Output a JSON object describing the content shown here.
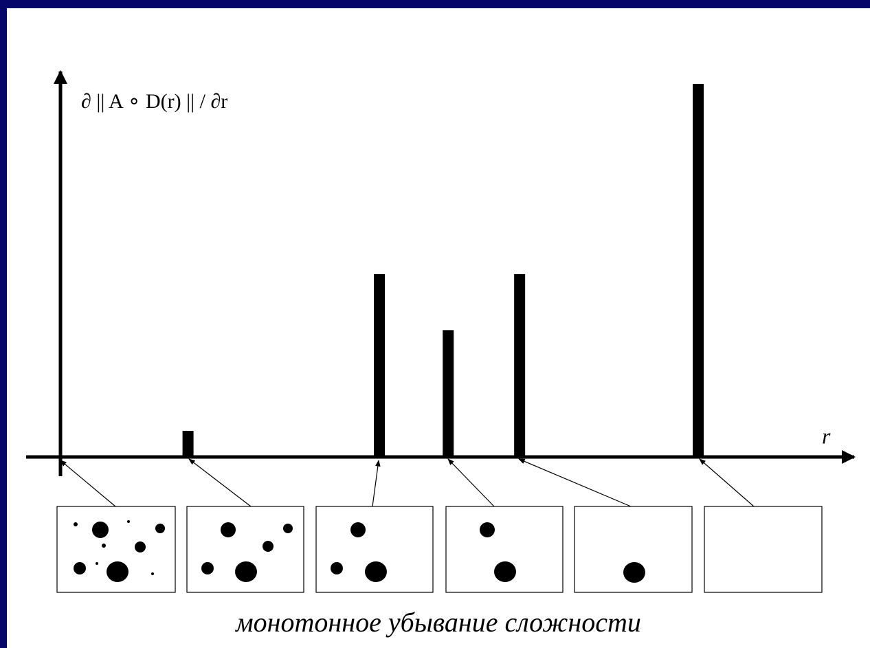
{
  "chart_data": {
    "type": "bar",
    "y_label": "∂ || A ∘ D(r) || / ∂r",
    "x_label": "r",
    "caption": "монотонное убывание сложности",
    "x": [
      2,
      5,
      6.08,
      7.2,
      10
    ],
    "values": [
      0.7,
      4.9,
      3.4,
      4.9,
      10
    ],
    "color": "#000000",
    "xlim": [
      -0.5,
      12.5
    ],
    "ylim": [
      0,
      10.4
    ]
  }
}
